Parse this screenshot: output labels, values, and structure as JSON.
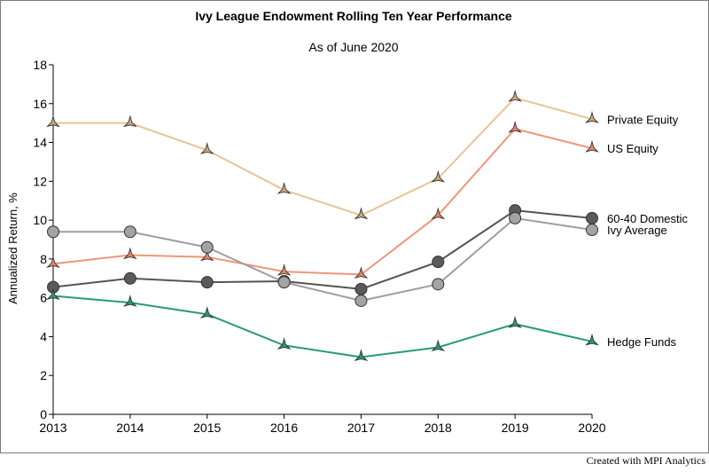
{
  "chart_data": {
    "type": "line",
    "title": "Ivy League Endowment Rolling Ten Year Performance",
    "subtitle": "As of June 2020",
    "xlabel": "",
    "ylabel": "Annualized Return, %",
    "x": [
      "2013",
      "2014",
      "2015",
      "2016",
      "2017",
      "2018",
      "2019",
      "2020"
    ],
    "ylim": [
      0,
      18
    ],
    "yticks": [
      0,
      2,
      4,
      6,
      8,
      10,
      12,
      14,
      16,
      18
    ],
    "grid": false,
    "legend": "labels at line ends (right)",
    "series": [
      {
        "name": "Private Equity",
        "marker": "star",
        "color": "#e6c596",
        "marker_color": "#d2ad7d",
        "values": [
          15.0,
          15.0,
          13.6,
          11.55,
          10.25,
          12.15,
          16.3,
          15.2
        ]
      },
      {
        "name": "US Equity",
        "marker": "star",
        "color": "#f0957a",
        "marker_color": "#ee8866",
        "values": [
          7.75,
          8.2,
          8.1,
          7.35,
          7.2,
          10.25,
          14.7,
          13.7
        ]
      },
      {
        "name": "60-40 Domestic",
        "marker": "circle",
        "color": "#555555",
        "marker_color": "#5a5a5a",
        "values": [
          6.55,
          7.0,
          6.8,
          6.85,
          6.45,
          7.85,
          10.5,
          10.1
        ]
      },
      {
        "name": "Ivy Average",
        "marker": "circle",
        "color": "#9e9e9e",
        "marker_color": "#a3a3a3",
        "values": [
          9.4,
          9.4,
          8.6,
          6.8,
          5.85,
          6.7,
          10.1,
          9.5
        ]
      },
      {
        "name": "Hedge Funds",
        "marker": "star",
        "color": "#2a9a78",
        "marker_color": "#2a9a78",
        "values": [
          6.1,
          5.75,
          5.15,
          3.55,
          2.95,
          3.45,
          4.65,
          3.75
        ]
      }
    ]
  },
  "credit": "Created with MPI Analytics"
}
